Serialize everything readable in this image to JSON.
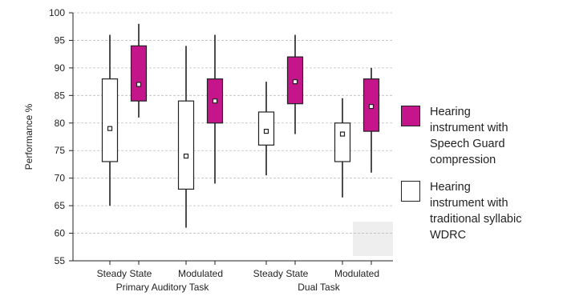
{
  "chart_data": {
    "type": "boxplot",
    "ylabel": "Performance %",
    "ylim": [
      55,
      100
    ],
    "yticks": [
      55,
      60,
      65,
      70,
      75,
      80,
      85,
      90,
      95,
      100
    ],
    "grid": true,
    "groups": [
      {
        "label": "Primary Auditory Task",
        "conditions": [
          "Steady State",
          "Modulated"
        ]
      },
      {
        "label": "Dual Task",
        "conditions": [
          "Steady State",
          "Modulated"
        ]
      }
    ],
    "series": [
      {
        "name": "Hearing instrument with traditional syllabic WDRC",
        "color": "#ffffff",
        "boxes": [
          {
            "group": "Primary Auditory Task",
            "condition": "Steady State",
            "min": 65,
            "q1": 73,
            "median": 79,
            "q3": 88,
            "max": 96
          },
          {
            "group": "Primary Auditory Task",
            "condition": "Modulated",
            "min": 61,
            "q1": 68,
            "median": 74,
            "q3": 84,
            "max": 94
          },
          {
            "group": "Dual Task",
            "condition": "Steady State",
            "min": 70.5,
            "q1": 76,
            "median": 78.5,
            "q3": 82,
            "max": 87.5
          },
          {
            "group": "Dual Task",
            "condition": "Modulated",
            "min": 66.5,
            "q1": 73,
            "median": 78,
            "q3": 80,
            "max": 84.5
          }
        ]
      },
      {
        "name": "Hearing instrument with Speech Guard compression",
        "color": "#c4168a",
        "boxes": [
          {
            "group": "Primary Auditory Task",
            "condition": "Steady State",
            "min": 81,
            "q1": 84,
            "median": 87,
            "q3": 94,
            "max": 98
          },
          {
            "group": "Primary Auditory Task",
            "condition": "Modulated",
            "min": 69,
            "q1": 80,
            "median": 84,
            "q3": 88,
            "max": 96
          },
          {
            "group": "Dual Task",
            "condition": "Steady State",
            "min": 78,
            "q1": 83.5,
            "median": 87.5,
            "q3": 92,
            "max": 96
          },
          {
            "group": "Dual Task",
            "condition": "Modulated",
            "min": 71,
            "q1": 78.5,
            "median": 83,
            "q3": 88,
            "max": 90
          }
        ]
      }
    ],
    "legend": {
      "position": "right",
      "items": [
        {
          "label_lines": [
            "Hearing",
            "instrument with",
            "Speech Guard",
            "compression"
          ],
          "color": "#c4168a"
        },
        {
          "label_lines": [
            "Hearing",
            "instrument with",
            "traditional syllabic",
            "WDRC"
          ],
          "color": "#ffffff"
        }
      ]
    }
  }
}
